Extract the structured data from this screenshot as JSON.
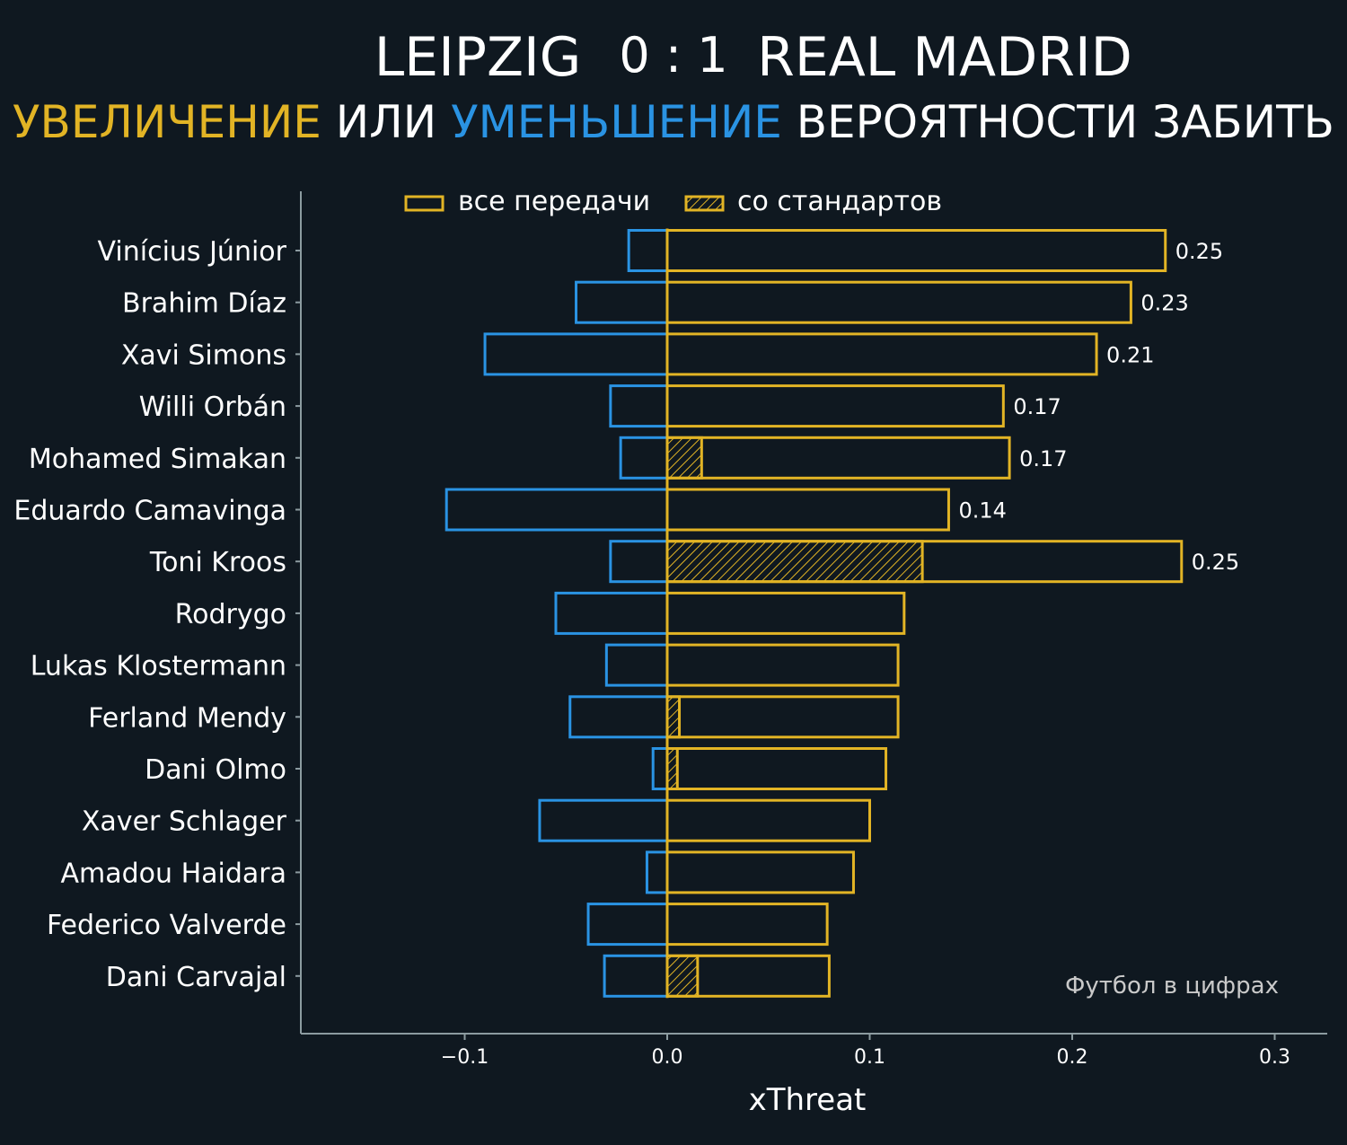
{
  "title": {
    "home": "LEIPZIG",
    "score": "0 : 1",
    "away": "REAL MADRID"
  },
  "subtitle": {
    "increase": "УВЕЛИЧЕНИЕ",
    "or": "ИЛИ",
    "decrease": "УМЕНЬШЕНИЕ",
    "rest": "ВЕРОЯТНОСТИ ЗАБИТЬ"
  },
  "colors": {
    "background": "#0f1820",
    "increase": "#e2b425",
    "decrease": "#2a93e3",
    "axis": "#8c9ba0",
    "text": "#ffffff",
    "watermark": "#c9c9c9"
  },
  "legend": {
    "position": "top",
    "all_passes": "все передачи",
    "set_pieces": "со стандартов"
  },
  "watermark": "Футбол в цифрах",
  "chart_data": {
    "type": "bar",
    "orientation": "horizontal",
    "xlabel": "xThreat",
    "xlim": [
      -0.18,
      0.325
    ],
    "xticks": [
      -0.1,
      0.0,
      0.1,
      0.2,
      0.3
    ],
    "xtick_labels": [
      "−0.1",
      "0.0",
      "0.1",
      "0.2",
      "0.3"
    ],
    "categories": [
      "Vinícius Júnior",
      "Brahim Díaz",
      "Xavi Simons",
      "Willi Orbán",
      "Mohamed Simakan",
      "Eduardo Camavinga",
      "Toni Kroos",
      "Rodrygo",
      "Lukas Klostermann",
      "Ferland Mendy",
      "Dani Olmo",
      "Xaver Schlager",
      "Amadou Haidara",
      "Federico Valverde",
      "Dani Carvajal"
    ],
    "series": [
      {
        "name": "все передачи",
        "values": [
          0.246,
          0.229,
          0.212,
          0.166,
          0.169,
          0.139,
          0.254,
          0.117,
          0.114,
          0.114,
          0.108,
          0.1,
          0.092,
          0.079,
          0.08
        ]
      },
      {
        "name": "со стандартов",
        "values": [
          0,
          0,
          0,
          0,
          0.017,
          0,
          0.126,
          0,
          0,
          0.006,
          0.005,
          0,
          0,
          0,
          0.015
        ]
      },
      {
        "values": [
          -0.019,
          -0.045,
          -0.09,
          -0.028,
          -0.023,
          -0.109,
          -0.028,
          -0.055,
          -0.03,
          -0.048,
          -0.007,
          -0.063,
          -0.01,
          -0.039,
          -0.031
        ]
      }
    ],
    "data_labels": [
      "0.25",
      "0.23",
      "0.21",
      "0.17",
      "0.17",
      "0.14",
      "0.25",
      "",
      "",
      "",
      "",
      "",
      "",
      "",
      ""
    ]
  }
}
